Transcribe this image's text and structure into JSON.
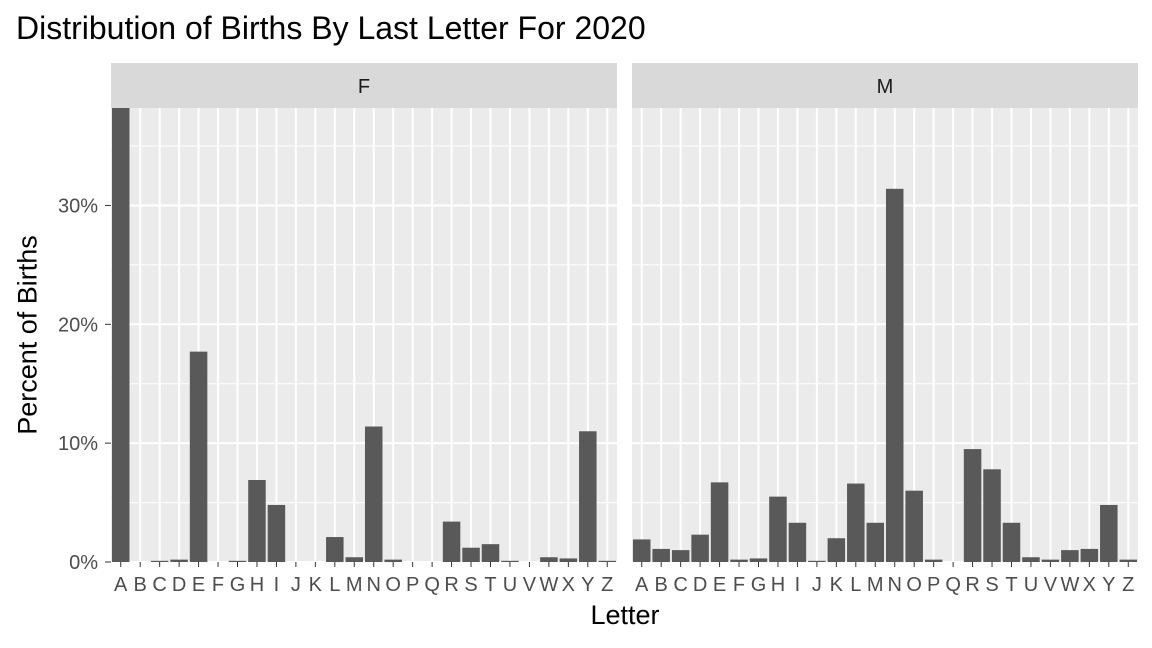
{
  "chart_data": {
    "type": "bar",
    "title": "Distribution of Births By Last Letter For 2020",
    "xlabel": "Letter",
    "ylabel": "Percent of Births",
    "ylim": [
      0,
      38.2
    ],
    "yticks": [
      0,
      10,
      20,
      30
    ],
    "ytick_labels": [
      "0%",
      "10%",
      "20%",
      "30%"
    ],
    "grid": true,
    "bar_color": "#595959",
    "panel_bg": "#ebebeb",
    "strip_bg": "#d9d9d9",
    "categories": [
      "A",
      "B",
      "C",
      "D",
      "E",
      "F",
      "G",
      "H",
      "I",
      "J",
      "K",
      "L",
      "M",
      "N",
      "O",
      "P",
      "Q",
      "R",
      "S",
      "T",
      "U",
      "V",
      "W",
      "X",
      "Y",
      "Z"
    ],
    "panels": [
      {
        "label": "F",
        "values": [
          38.2,
          0.0,
          0.1,
          0.2,
          17.7,
          0.0,
          0.1,
          6.9,
          4.8,
          0.0,
          0.0,
          2.1,
          0.4,
          11.4,
          0.2,
          0.0,
          0.0,
          3.4,
          1.2,
          1.5,
          0.1,
          0.0,
          0.4,
          0.3,
          11.0,
          0.1
        ]
      },
      {
        "label": "M",
        "values": [
          1.9,
          1.1,
          1.0,
          2.3,
          6.7,
          0.2,
          0.3,
          5.5,
          3.3,
          0.1,
          2.0,
          6.6,
          3.3,
          31.4,
          6.0,
          0.2,
          0.0,
          9.5,
          7.8,
          3.3,
          0.4,
          0.2,
          1.0,
          1.1,
          4.8,
          0.2
        ]
      }
    ]
  }
}
